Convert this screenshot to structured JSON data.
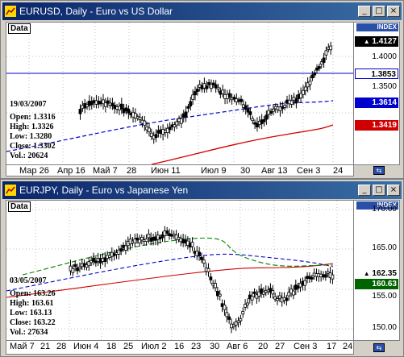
{
  "windows": [
    {
      "title": "EURUSD, Daily - Euro vs US Dollar",
      "data_label": "Data",
      "index_label": "INDEX",
      "info": {
        "date": "19/03/2007",
        "open": "Open: 1.3316",
        "high": "High: 1.3326",
        "low": "Low: 1.3280",
        "close": "Close: 1.3302",
        "vol": "Vol.: 20624"
      },
      "price_tags": [
        "1.4127",
        "1.3853",
        "1.3614",
        "1.3419"
      ],
      "y_ticks": [
        "1.4000",
        "1.3500"
      ],
      "x_labels": [
        "Мар 26",
        "Апр 16",
        "Май 7",
        "28",
        "Июн 11",
        "Июл 9",
        "30",
        "Авг 13",
        "Сен 3",
        "24"
      ]
    },
    {
      "title": "EURJPY, Daily - Euro vs Japanese Yen",
      "data_label": "Data",
      "index_label": "INDEX",
      "info": {
        "date": "03/05/2007",
        "open": "Open: 163.26",
        "high": "High: 163.61",
        "low": "Low: 163.13",
        "close": "Close: 163.22",
        "vol": "Vol.: 27634"
      },
      "price_tags": [
        "162.35",
        "160.63"
      ],
      "y_ticks": [
        "170.00",
        "165.00",
        "155.00",
        "150.00"
      ],
      "x_labels": [
        "Май 7",
        "21",
        "28",
        "Июн 4",
        "18",
        "25",
        "Июл 2",
        "16",
        "23",
        "30",
        "Авг 6",
        "20",
        "27",
        "Сен 3",
        "17",
        "24"
      ]
    }
  ],
  "buttons": {
    "minimize": "_",
    "maximize": "□",
    "close": "×"
  }
}
